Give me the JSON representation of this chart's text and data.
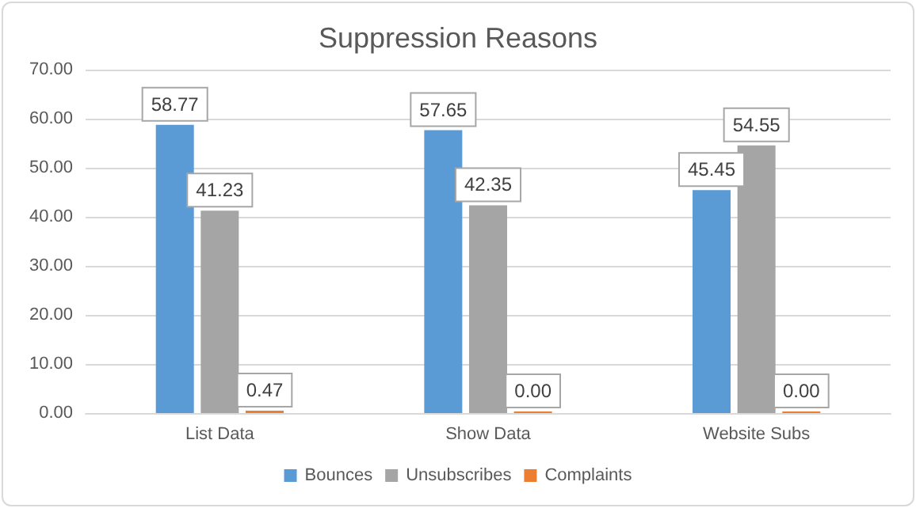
{
  "chart_data": {
    "type": "bar",
    "title": "Suppression Reasons",
    "categories": [
      "List Data",
      "Show Data",
      "Website Subs"
    ],
    "series": [
      {
        "name": "Bounces",
        "color": "#5b9bd5",
        "values": [
          58.77,
          57.65,
          45.45
        ],
        "value_labels": [
          "58.77",
          "57.65",
          "45.45"
        ]
      },
      {
        "name": "Unsubscribes",
        "color": "#a5a5a5",
        "values": [
          41.23,
          42.35,
          54.55
        ],
        "value_labels": [
          "41.23",
          "42.35",
          "54.55"
        ]
      },
      {
        "name": "Complaints",
        "color": "#ed7d31",
        "values": [
          0.47,
          0,
          0
        ],
        "value_labels": [
          "0.47",
          "0.00",
          "0.00"
        ]
      }
    ],
    "ylim": [
      0,
      70
    ],
    "yticks": [
      {
        "value": 0,
        "label": "0.00"
      },
      {
        "value": 10,
        "label": "10.00"
      },
      {
        "value": 20,
        "label": "20.00"
      },
      {
        "value": 30,
        "label": "30.00"
      },
      {
        "value": 40,
        "label": "40.00"
      },
      {
        "value": 50,
        "label": "50.00"
      },
      {
        "value": 60,
        "label": "60.00"
      },
      {
        "value": 70,
        "label": "70.00"
      }
    ],
    "grid": "y",
    "legend": "bottom"
  }
}
